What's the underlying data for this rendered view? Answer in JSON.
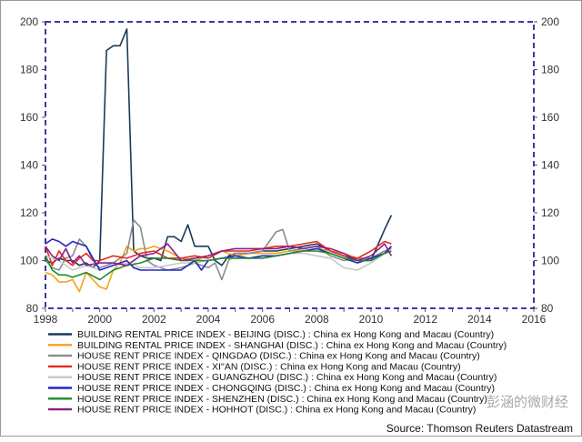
{
  "chart_data": {
    "type": "line",
    "title": "",
    "xlabel": "",
    "ylabel": "",
    "xlim": [
      1998,
      2016
    ],
    "ylim": [
      80,
      200
    ],
    "x_ticks": [
      1998,
      2000,
      2002,
      2004,
      2006,
      2008,
      2010,
      2012,
      2014,
      2016
    ],
    "y_ticks": [
      80,
      100,
      120,
      140,
      160,
      180,
      200
    ],
    "y_axis_both_sides": true,
    "grid": false,
    "legend_position": "bottom",
    "source": "Source: Thomson Reuters Datastream",
    "series": [
      {
        "name": "BUILDING RENTAL PRICE INDEX - BEIJING (DISC.) : China ex Hong Kong and Macau (Country)",
        "color": "#1b3a5c",
        "x": [
          1998.0,
          1998.25,
          1998.5,
          1998.75,
          1999.0,
          1999.25,
          1999.5,
          1999.75,
          2000.0,
          2000.25,
          2000.5,
          2000.75,
          2001.0,
          2001.25,
          2001.5,
          2001.75,
          2002.0,
          2002.25,
          2002.5,
          2002.75,
          2003.0,
          2003.25,
          2003.5,
          2003.75,
          2004.0,
          2004.25,
          2004.5,
          2004.75,
          2005.0,
          2005.5,
          2006.0,
          2006.5,
          2007.0,
          2007.5,
          2008.0,
          2008.5,
          2009.0,
          2009.5,
          2010.0,
          2010.5,
          2010.75
        ],
        "values": [
          100,
          99,
          101,
          100,
          100,
          98,
          99,
          97,
          100,
          188,
          190,
          190,
          197,
          104,
          102,
          101,
          101,
          100,
          110,
          110,
          108,
          115,
          106,
          106,
          106,
          100,
          98,
          102,
          103,
          103,
          104,
          104,
          105,
          106,
          107,
          104,
          102,
          100,
          100,
          113,
          119
        ]
      },
      {
        "name": "BUILDING RENTAL PRICE INDEX - SHANGHAI (DISC.) : China ex Hong Kong and Macau (Country)",
        "color": "#f5a21b",
        "x": [
          1998.0,
          1998.25,
          1998.5,
          1998.75,
          1999.0,
          1999.25,
          1999.5,
          1999.75,
          2000.0,
          2000.25,
          2000.5,
          2000.75,
          2001.0,
          2001.25,
          2001.5,
          2001.75,
          2002.0,
          2002.5,
          2003.0,
          2003.5,
          2004.0,
          2004.5,
          2005.0,
          2005.5,
          2006.0,
          2006.5,
          2007.0,
          2007.5,
          2008.0,
          2008.5,
          2009.0,
          2009.5,
          2010.0,
          2010.5,
          2010.75
        ],
        "values": [
          95,
          94,
          91,
          91,
          92,
          87,
          95,
          92,
          89,
          88,
          96,
          99,
          106,
          104,
          105,
          105,
          106,
          104,
          101,
          100,
          102,
          104,
          102,
          103,
          103,
          103,
          104,
          104,
          105,
          104,
          103,
          101,
          100,
          103,
          106
        ]
      },
      {
        "name": "HOUSE RENT PRICE INDEX - QINGDAO (DISC.) : China ex Hong Kong and Macau (Country)",
        "color": "#8c8c8c",
        "x": [
          1998.0,
          1998.25,
          1998.5,
          1998.75,
          1999.0,
          1999.25,
          1999.5,
          1999.75,
          2000.0,
          2000.5,
          2001.0,
          2001.25,
          2001.5,
          2001.75,
          2002.0,
          2002.5,
          2003.0,
          2003.5,
          2004.0,
          2004.25,
          2004.5,
          2004.75,
          2005.0,
          2005.5,
          2006.0,
          2006.5,
          2006.75,
          2007.0,
          2007.5,
          2008.0,
          2008.5,
          2009.0,
          2009.5,
          2010.0,
          2010.5,
          2010.75
        ],
        "values": [
          100,
          97,
          96,
          101,
          102,
          109,
          106,
          100,
          97,
          99,
          103,
          117,
          114,
          100,
          98,
          96,
          97,
          99,
          97,
          99,
          92,
          100,
          103,
          103,
          104,
          112,
          113,
          104,
          105,
          106,
          102,
          100,
          101,
          101,
          104,
          105
        ]
      },
      {
        "name": "HOUSE RENT PRICE INDEX - XI''AN (DISC.) : China ex Hong Kong and Macau (Country)",
        "color": "#e32b1f",
        "x": [
          1998.0,
          1998.25,
          1998.5,
          1998.75,
          1999.0,
          1999.25,
          1999.5,
          1999.75,
          2000.0,
          2000.5,
          2001.0,
          2001.5,
          2002.0,
          2002.5,
          2003.0,
          2003.5,
          2004.0,
          2004.5,
          2005.0,
          2005.5,
          2006.0,
          2006.5,
          2007.0,
          2007.5,
          2008.0,
          2008.5,
          2009.0,
          2009.5,
          2010.0,
          2010.5,
          2010.75
        ],
        "values": [
          106,
          98,
          104,
          100,
          98,
          101,
          103,
          100,
          100,
          102,
          101,
          103,
          104,
          101,
          101,
          102,
          101,
          104,
          104,
          104,
          105,
          106,
          106,
          107,
          108,
          104,
          102,
          101,
          104,
          108,
          107
        ]
      },
      {
        "name": "HOUSE RENT PRICE INDEX - GUANGZHOU (DISC.) : China ex Hong Kong and Macau (Country)",
        "color": "#c8c8c8",
        "x": [
          1998.0,
          1998.5,
          1999.0,
          1999.5,
          2000.0,
          2000.5,
          2001.0,
          2001.5,
          2002.0,
          2002.5,
          2003.0,
          2003.5,
          2004.0,
          2004.5,
          2005.0,
          2005.5,
          2006.0,
          2006.5,
          2007.0,
          2007.5,
          2008.0,
          2008.5,
          2009.0,
          2009.5,
          2010.0,
          2010.5,
          2010.75
        ],
        "values": [
          102,
          100,
          96,
          98,
          96,
          98,
          99,
          97,
          97,
          98,
          99,
          99,
          100,
          101,
          101,
          101,
          102,
          102,
          103,
          103,
          102,
          101,
          97,
          96,
          99,
          103,
          104
        ]
      },
      {
        "name": "HOUSE RENT PRICE INDEX - CHONGQING (DISC.) : China ex Hong Kong and Macau (Country)",
        "color": "#2525c9",
        "x": [
          1998.0,
          1998.25,
          1998.5,
          1998.75,
          1999.0,
          1999.25,
          1999.5,
          1999.75,
          2000.0,
          2000.5,
          2001.0,
          2001.25,
          2001.5,
          2001.75,
          2002.0,
          2002.5,
          2003.0,
          2003.5,
          2003.75,
          2004.0,
          2004.5,
          2005.0,
          2005.5,
          2006.0,
          2006.5,
          2007.0,
          2007.5,
          2008.0,
          2008.5,
          2009.0,
          2009.5,
          2010.0,
          2010.5,
          2010.75
        ],
        "values": [
          107,
          109,
          108,
          106,
          108,
          107,
          106,
          101,
          96,
          98,
          100,
          97,
          96,
          96,
          96,
          96,
          96,
          100,
          96,
          100,
          101,
          102,
          101,
          102,
          102,
          103,
          104,
          105,
          103,
          101,
          99,
          101,
          103,
          106
        ]
      },
      {
        "name": "HOUSE RENT PRICE INDEX - SHENZHEN (DISC.) : China ex Hong Kong and Macau (Country)",
        "color": "#1f8a2a",
        "x": [
          1998.0,
          1998.25,
          1998.5,
          1998.75,
          1999.0,
          1999.5,
          2000.0,
          2000.5,
          2001.0,
          2001.5,
          2002.0,
          2002.5,
          2003.0,
          2003.5,
          2004.0,
          2004.5,
          2005.0,
          2005.5,
          2006.0,
          2006.5,
          2007.0,
          2007.5,
          2008.0,
          2008.5,
          2009.0,
          2009.5,
          2010.0,
          2010.5,
          2010.75
        ],
        "values": [
          102,
          96,
          94,
          94,
          93,
          95,
          92,
          96,
          98,
          99,
          101,
          101,
          100,
          100,
          100,
          101,
          101,
          101,
          101,
          102,
          103,
          104,
          104,
          103,
          101,
          100,
          100,
          103,
          104
        ]
      },
      {
        "name": "HOUSE RENT PRICE INDEX - HOHHOT (DISC.) : China ex Hong Kong and Macau (Country)",
        "color": "#8a1f8a",
        "x": [
          1998.0,
          1998.25,
          1998.5,
          1998.75,
          1999.0,
          1999.25,
          1999.5,
          2000.0,
          2000.5,
          2001.0,
          2001.5,
          2002.0,
          2002.5,
          2003.0,
          2003.5,
          2004.0,
          2004.5,
          2005.0,
          2005.5,
          2006.0,
          2006.5,
          2007.0,
          2007.5,
          2008.0,
          2008.5,
          2009.0,
          2009.5,
          2010.0,
          2010.5,
          2010.75
        ],
        "values": [
          106,
          102,
          100,
          105,
          99,
          102,
          98,
          99,
          99,
          98,
          102,
          103,
          107,
          100,
          101,
          102,
          104,
          105,
          105,
          105,
          105,
          106,
          105,
          106,
          105,
          103,
          100,
          102,
          107,
          102
        ]
      }
    ]
  },
  "watermark": "彭涵的微财经"
}
